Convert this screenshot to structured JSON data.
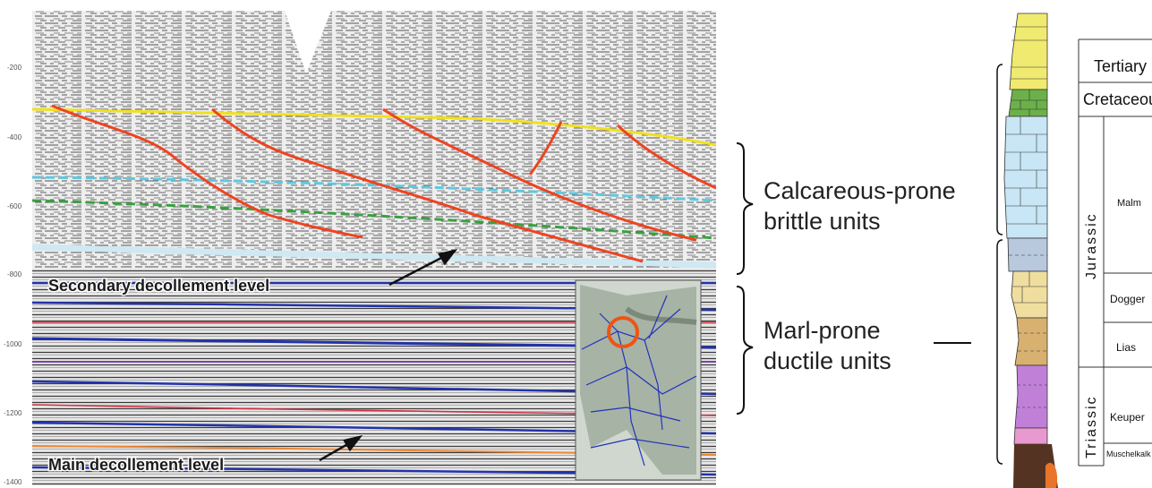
{
  "seismic": {
    "y_axis_ticks": [
      "-200",
      "-400",
      "-600",
      "-800",
      "-1000",
      "-1200",
      "-1400"
    ],
    "secondary_label": "Secondary decollement level",
    "main_label": "Main decollement level",
    "colors": {
      "fault": "#ee4422",
      "yellow_horizon": "#f0e020",
      "cyan_horizon": "#5ec8e0",
      "green_horizon": "#3aa040",
      "blue_reflector": "#2233aa",
      "inset_ring": "#ee5511"
    }
  },
  "units": {
    "brittle": "Calcareous-prone\nbrittle units",
    "ductile": "Marl-prone\nductile units"
  },
  "column": {
    "periods": {
      "jurassic": "Jurassic",
      "triassic": "Triassic"
    },
    "stages": {
      "tertiary": "Tertiary",
      "cretaceous": "Cretaceous",
      "malm": "Malm",
      "dogger": "Dogger",
      "lias": "Lias",
      "keuper": "Keuper",
      "muschelkalk": "Muschelkalk"
    },
    "colors": {
      "tertiary": "#f0ea70",
      "cretaceous": "#6cb04a",
      "malm": "#c8e6f5",
      "malm_lower": "#b8c8dd",
      "dogger": "#f0dea0",
      "lias": "#d8b070",
      "keuper": "#c080d8",
      "muschelkalk": "#e89ad0",
      "basement": "#553322"
    }
  }
}
